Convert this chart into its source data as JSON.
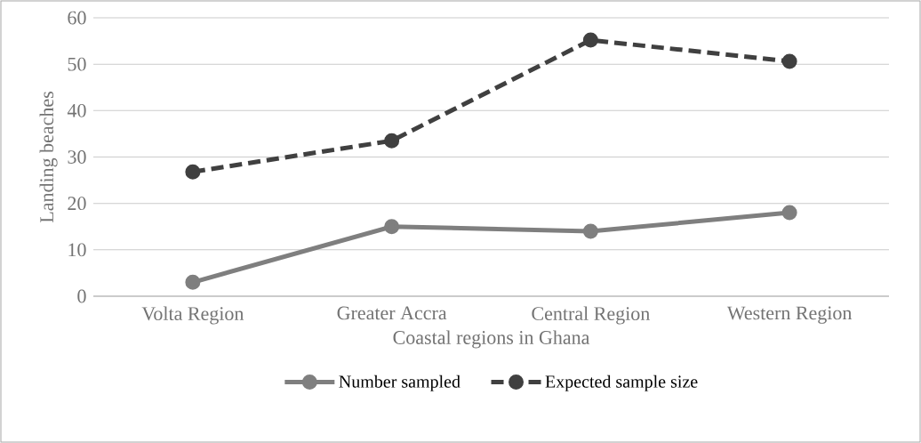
{
  "chart_data": {
    "type": "line",
    "xlabel": "Coastal regions in Ghana",
    "ylabel": "Landing beaches",
    "categories": [
      "Volta Region",
      "Greater Accra",
      "Central Region",
      "Western Region"
    ],
    "series": [
      {
        "name": "Number sampled",
        "color": "#7f7f7f",
        "line_style": "solid",
        "values": [
          3,
          15,
          14,
          18
        ]
      },
      {
        "name": "Expected sample size",
        "color": "#404040",
        "line_style": "dashed",
        "values": [
          26.8,
          33.5,
          55.2,
          50.6
        ]
      }
    ],
    "ylim": [
      0,
      60
    ],
    "yticks": [
      0,
      10,
      20,
      30,
      40,
      50,
      60
    ],
    "grid": "y",
    "legend": "bottom",
    "marker": "circle"
  }
}
